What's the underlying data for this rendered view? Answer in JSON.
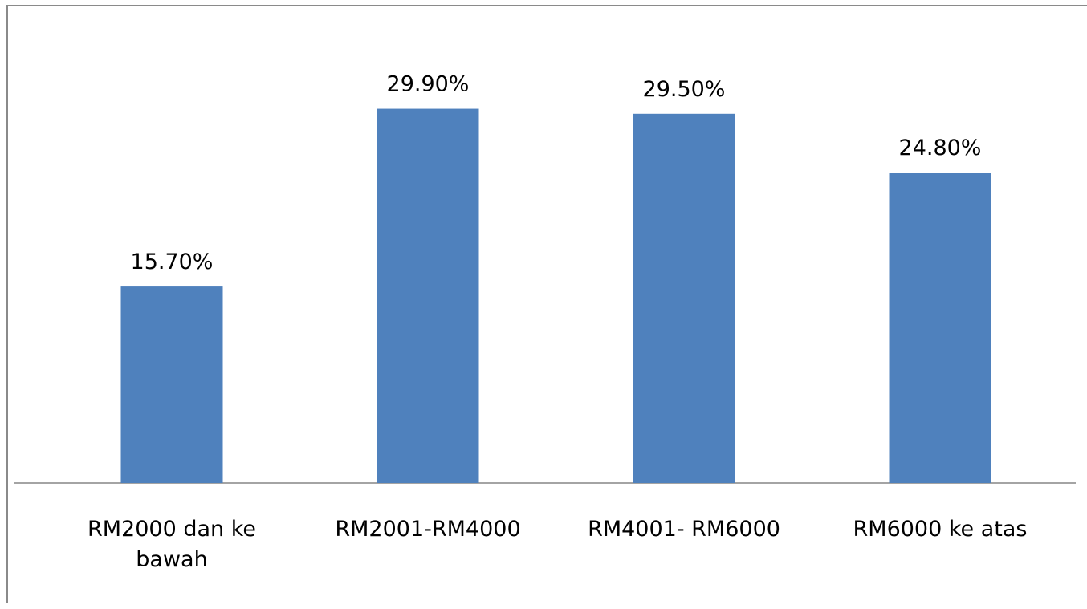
{
  "chart_data": {
    "type": "bar",
    "categories": [
      [
        "RM2000 dan ke",
        "bawah"
      ],
      [
        "RM2001-RM4000"
      ],
      [
        "RM4001- RM6000"
      ],
      [
        "RM6000 ke atas"
      ]
    ],
    "values": [
      15.7,
      29.9,
      29.5,
      24.8
    ],
    "value_labels": [
      "15.70%",
      "29.90%",
      "29.50%",
      "24.80%"
    ],
    "title": "",
    "xlabel": "",
    "ylabel": "",
    "ylim": [
      0,
      35
    ],
    "grid": false,
    "legend": "none",
    "bar_color": "#4f81bd",
    "axis_color": "#868686"
  }
}
